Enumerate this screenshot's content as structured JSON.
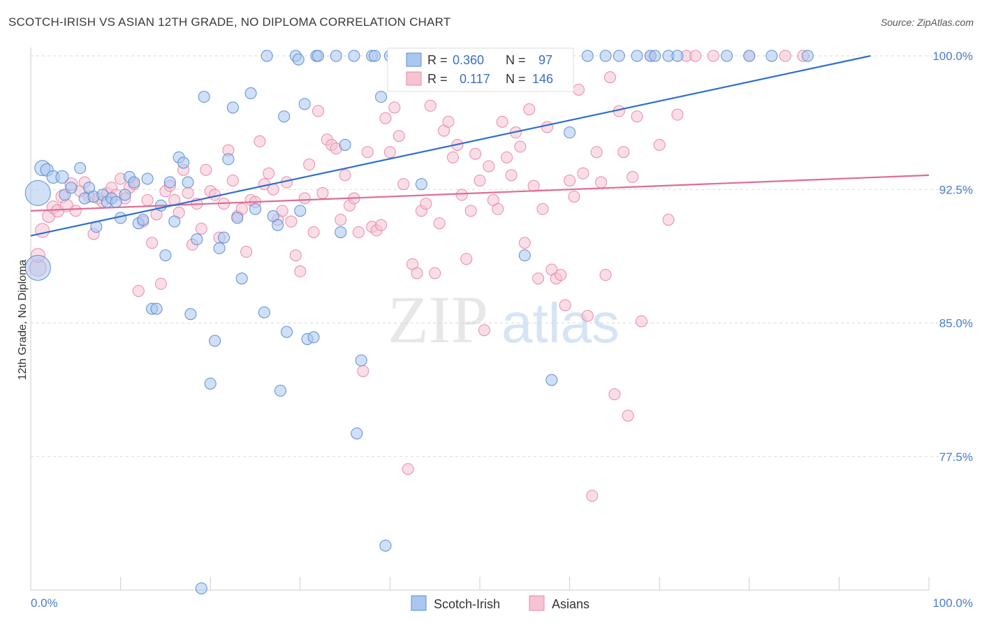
{
  "title": "SCOTCH-IRISH VS ASIAN 12TH GRADE, NO DIPLOMA CORRELATION CHART",
  "source": "Source: ZipAtlas.com",
  "watermark": {
    "zip": "ZIP",
    "atlas": "atlas"
  },
  "colors": {
    "blue_fill": "#a9c7ef",
    "blue_stroke": "#5b8fd6",
    "blue_line": "#2f6fcf",
    "pink_fill": "#f6c3d3",
    "pink_stroke": "#e98aa8",
    "pink_line": "#e06b94",
    "tick_text": "#4a7ccc",
    "grid": "#d9d9d9"
  },
  "legend": {
    "rows": [
      {
        "r_label": "R =",
        "r_value": "0.360",
        "n_label": "N =",
        "n_value": "97"
      },
      {
        "r_label": "R =",
        "r_value": "0.117",
        "n_label": "N =",
        "n_value": "146"
      }
    ]
  },
  "chart_data": {
    "type": "scatter",
    "xlabel": "",
    "ylabel": "12th Grade, No Diploma",
    "xlim": [
      0,
      100
    ],
    "ylim": [
      70.0,
      100.8
    ],
    "x_tick_labels": [
      "0.0%",
      "100.0%"
    ],
    "y_ticks": [
      77.5,
      85.0,
      92.5,
      100.0
    ],
    "y_tick_labels": [
      "77.5%",
      "85.0%",
      "92.5%",
      "100.0%"
    ],
    "grid": true,
    "legend_placement": "top-center",
    "series": [
      {
        "name": "Scotch-Irish",
        "R": 0.36,
        "N": 97,
        "trend": [
          [
            0,
            89.9
          ],
          [
            93.5,
            100.0
          ]
        ],
        "points": [
          [
            0.8,
            92.3,
            18
          ],
          [
            0.8,
            88.1,
            18
          ],
          [
            1.3,
            93.7,
            11
          ],
          [
            1.8,
            93.6,
            9
          ],
          [
            2.5,
            93.2,
            9
          ],
          [
            3.5,
            93.2,
            9
          ],
          [
            3.8,
            92.2,
            8
          ],
          [
            4.5,
            92.6,
            8
          ],
          [
            5.5,
            93.7,
            8
          ],
          [
            6,
            92.0,
            8
          ],
          [
            6.5,
            92.6,
            8
          ],
          [
            7,
            92.1,
            8
          ],
          [
            7.3,
            90.4,
            8
          ],
          [
            8,
            92.2,
            8
          ],
          [
            8.5,
            91.8,
            8
          ],
          [
            9,
            92.0,
            8
          ],
          [
            9.5,
            91.8,
            8
          ],
          [
            10,
            90.9,
            8
          ],
          [
            10.5,
            92.2,
            8
          ],
          [
            11,
            93.2,
            8
          ],
          [
            11.5,
            92.9,
            8
          ],
          [
            12,
            90.6,
            8
          ],
          [
            12.5,
            90.8,
            8
          ],
          [
            13,
            93.1,
            8
          ],
          [
            13.5,
            85.8,
            8
          ],
          [
            14,
            85.8,
            8
          ],
          [
            14.5,
            91.6,
            8
          ],
          [
            15,
            88.8,
            8
          ],
          [
            15.5,
            92.9,
            8
          ],
          [
            16,
            90.7,
            8
          ],
          [
            16.5,
            94.3,
            8
          ],
          [
            17,
            94.0,
            8
          ],
          [
            17.5,
            92.9,
            8
          ],
          [
            17.8,
            85.5,
            8
          ],
          [
            18.5,
            89.7,
            8
          ],
          [
            19,
            70.1,
            8
          ],
          [
            19.3,
            97.7,
            8
          ],
          [
            20,
            81.6,
            8
          ],
          [
            20.5,
            84.0,
            8
          ],
          [
            21,
            89.2,
            8
          ],
          [
            21.5,
            89.8,
            8
          ],
          [
            22,
            94.2,
            8
          ],
          [
            22.5,
            97.1,
            8
          ],
          [
            23,
            90.9,
            8
          ],
          [
            23.5,
            87.5,
            8
          ],
          [
            24.5,
            97.9,
            8
          ],
          [
            25,
            91.4,
            8
          ],
          [
            26,
            85.6,
            8
          ],
          [
            26.3,
            100.0,
            8
          ],
          [
            27,
            91.0,
            8
          ],
          [
            27.5,
            90.5,
            8
          ],
          [
            27.8,
            81.2,
            8
          ],
          [
            28.2,
            96.6,
            8
          ],
          [
            28.5,
            84.5,
            8
          ],
          [
            29.5,
            100.0,
            8
          ],
          [
            29.8,
            99.8,
            8
          ],
          [
            30,
            91.3,
            8
          ],
          [
            30.5,
            97.3,
            8
          ],
          [
            30.8,
            84.1,
            8
          ],
          [
            31.5,
            84.2,
            8
          ],
          [
            31.8,
            100.0,
            8
          ],
          [
            32,
            100.0,
            8
          ],
          [
            34,
            100.0,
            8
          ],
          [
            34.5,
            90.1,
            8
          ],
          [
            35,
            95.0,
            8
          ],
          [
            36,
            100.0,
            8
          ],
          [
            36.3,
            78.8,
            8
          ],
          [
            36.8,
            82.9,
            8
          ],
          [
            38,
            100.0,
            8
          ],
          [
            38.3,
            100.0,
            8
          ],
          [
            39,
            97.7,
            8
          ],
          [
            39.5,
            72.5,
            8
          ],
          [
            40,
            100.0,
            8
          ],
          [
            40.3,
            100.0,
            8
          ],
          [
            43.5,
            92.8,
            8
          ],
          [
            44,
            100.0,
            8
          ],
          [
            46,
            100.0,
            8
          ],
          [
            48,
            100.0,
            8
          ],
          [
            50,
            100.0,
            8
          ],
          [
            52,
            100.0,
            8
          ],
          [
            53.5,
            100.0,
            8
          ],
          [
            55,
            88.8,
            8
          ],
          [
            56.5,
            100.0,
            8
          ],
          [
            58,
            81.8,
            8
          ],
          [
            60,
            95.7,
            8
          ],
          [
            62,
            100.0,
            8
          ],
          [
            64,
            100.0,
            8
          ],
          [
            65.5,
            100.0,
            8
          ],
          [
            67.5,
            100.0,
            8
          ],
          [
            69,
            100.0,
            8
          ],
          [
            69.5,
            100.0,
            8
          ],
          [
            71,
            100.0,
            8
          ],
          [
            72,
            100.0,
            8
          ],
          [
            77.5,
            100.0,
            8
          ],
          [
            80,
            100.0,
            8
          ],
          [
            82.5,
            100.0,
            8
          ],
          [
            86.5,
            100.0,
            8
          ]
        ]
      },
      {
        "name": "Asians",
        "R": 0.117,
        "N": 146,
        "trend": [
          [
            0,
            91.3
          ],
          [
            100,
            93.3
          ]
        ],
        "points": [
          [
            0.8,
            88.1,
            12
          ],
          [
            0.8,
            88.8,
            10
          ],
          [
            1.3,
            90.2,
            10
          ],
          [
            2,
            91.0,
            9
          ],
          [
            2.5,
            91.5,
            9
          ],
          [
            3,
            91.3,
            9
          ],
          [
            3.5,
            92.1,
            9
          ],
          [
            4,
            91.6,
            9
          ],
          [
            4.5,
            92.8,
            9
          ],
          [
            5,
            91.3,
            8
          ],
          [
            5.5,
            92.4,
            8
          ],
          [
            6,
            92.9,
            8
          ],
          [
            6.5,
            92.1,
            8
          ],
          [
            7,
            90.0,
            8
          ],
          [
            7.5,
            92.0,
            8
          ],
          [
            8,
            91.8,
            8
          ],
          [
            8.5,
            92.3,
            8
          ],
          [
            9,
            92.6,
            8
          ],
          [
            9.5,
            92.2,
            8
          ],
          [
            10,
            93.1,
            8
          ],
          [
            10.5,
            92.0,
            8
          ],
          [
            11,
            92.6,
            8
          ],
          [
            11.5,
            92.8,
            8
          ],
          [
            12,
            86.8,
            8
          ],
          [
            12.5,
            90.7,
            8
          ],
          [
            13,
            91.9,
            8
          ],
          [
            13.5,
            89.5,
            8
          ],
          [
            14,
            91.1,
            8
          ],
          [
            14.5,
            87.2,
            8
          ],
          [
            15,
            92.4,
            8
          ],
          [
            15.5,
            92.7,
            8
          ],
          [
            16,
            91.9,
            8
          ],
          [
            16.5,
            91.2,
            8
          ],
          [
            17,
            93.6,
            8
          ],
          [
            17.5,
            92.3,
            8
          ],
          [
            18,
            89.4,
            8
          ],
          [
            18.5,
            91.7,
            8
          ],
          [
            19,
            90.3,
            8
          ],
          [
            19.5,
            93.6,
            8
          ],
          [
            20,
            92.4,
            8
          ],
          [
            20.5,
            92.2,
            8
          ],
          [
            21,
            89.8,
            8
          ],
          [
            21.5,
            91.7,
            8
          ],
          [
            22,
            94.7,
            8
          ],
          [
            22.5,
            93.0,
            8
          ],
          [
            23,
            91.0,
            8
          ],
          [
            23.5,
            91.4,
            8
          ],
          [
            24,
            89.0,
            8
          ],
          [
            24.5,
            91.9,
            8
          ],
          [
            25,
            91.8,
            8
          ],
          [
            25.5,
            95.2,
            8
          ],
          [
            26,
            92.8,
            8
          ],
          [
            26.5,
            93.4,
            8
          ],
          [
            27,
            92.5,
            8
          ],
          [
            27.5,
            90.8,
            8
          ],
          [
            28,
            91.3,
            8
          ],
          [
            28.5,
            92.9,
            8
          ],
          [
            29,
            90.7,
            8
          ],
          [
            29.5,
            88.8,
            8
          ],
          [
            30,
            87.9,
            8
          ],
          [
            30.5,
            92.0,
            8
          ],
          [
            31,
            93.9,
            8
          ],
          [
            31.5,
            90.1,
            8
          ],
          [
            32,
            96.9,
            8
          ],
          [
            32.5,
            92.3,
            8
          ],
          [
            33,
            95.3,
            8
          ],
          [
            33.5,
            95.0,
            8
          ],
          [
            34,
            94.8,
            8
          ],
          [
            34.5,
            90.8,
            8
          ],
          [
            35,
            93.3,
            8
          ],
          [
            35.5,
            91.6,
            8
          ],
          [
            36,
            92.0,
            8
          ],
          [
            36.5,
            90.1,
            8
          ],
          [
            37,
            82.3,
            8
          ],
          [
            37.5,
            94.6,
            8
          ],
          [
            38,
            90.4,
            8
          ],
          [
            38.5,
            90.2,
            8
          ],
          [
            39,
            90.5,
            8
          ],
          [
            39.5,
            96.5,
            8
          ],
          [
            40,
            94.6,
            8
          ],
          [
            40.5,
            97.1,
            8
          ],
          [
            41,
            95.5,
            8
          ],
          [
            41.5,
            92.8,
            8
          ],
          [
            42,
            76.8,
            8
          ],
          [
            42.5,
            88.3,
            8
          ],
          [
            43,
            87.8,
            8
          ],
          [
            43.5,
            91.3,
            8
          ],
          [
            44,
            91.7,
            8
          ],
          [
            44.5,
            97.2,
            8
          ],
          [
            45,
            87.8,
            8
          ],
          [
            45.5,
            90.6,
            8
          ],
          [
            46,
            95.8,
            8
          ],
          [
            46.5,
            96.3,
            8
          ],
          [
            47,
            94.3,
            8
          ],
          [
            47.5,
            95.0,
            8
          ],
          [
            48,
            92.2,
            8
          ],
          [
            48.5,
            88.6,
            8
          ],
          [
            49,
            91.3,
            8
          ],
          [
            49.5,
            94.5,
            8
          ],
          [
            50,
            93.0,
            8
          ],
          [
            50.5,
            84.6,
            8
          ],
          [
            51,
            93.8,
            8
          ],
          [
            51.5,
            91.9,
            8
          ],
          [
            52,
            91.4,
            8
          ],
          [
            52.5,
            96.3,
            8
          ],
          [
            53,
            94.3,
            8
          ],
          [
            53.5,
            93.3,
            8
          ],
          [
            54,
            95.7,
            8
          ],
          [
            54.5,
            94.9,
            8
          ],
          [
            55,
            89.5,
            8
          ],
          [
            55.5,
            97.0,
            8
          ],
          [
            56,
            92.7,
            8
          ],
          [
            56.5,
            87.5,
            8
          ],
          [
            57,
            91.4,
            8
          ],
          [
            57.5,
            96.0,
            8
          ],
          [
            58,
            88.0,
            8
          ],
          [
            58.5,
            87.5,
            8
          ],
          [
            59,
            87.7,
            8
          ],
          [
            59.5,
            86.0,
            8
          ],
          [
            60,
            93.0,
            8
          ],
          [
            60.5,
            92.1,
            8
          ],
          [
            61,
            98.1,
            8
          ],
          [
            61.5,
            93.4,
            8
          ],
          [
            62,
            85.4,
            8
          ],
          [
            62.5,
            75.3,
            8
          ],
          [
            63,
            94.6,
            8
          ],
          [
            63.5,
            92.9,
            8
          ],
          [
            64,
            87.7,
            8
          ],
          [
            64.5,
            98.8,
            8
          ],
          [
            65,
            81.0,
            8
          ],
          [
            65.5,
            96.9,
            8
          ],
          [
            66,
            94.6,
            8
          ],
          [
            66.5,
            79.8,
            8
          ],
          [
            67,
            93.2,
            8
          ],
          [
            67.5,
            96.6,
            8
          ],
          [
            68,
            85.1,
            8
          ],
          [
            69,
            100.0,
            8
          ],
          [
            70,
            95.0,
            8
          ],
          [
            71,
            90.8,
            8
          ],
          [
            72,
            96.7,
            8
          ],
          [
            73,
            100.0,
            8
          ],
          [
            74,
            100.0,
            8
          ],
          [
            76,
            100.0,
            8
          ],
          [
            80,
            100.0,
            8
          ],
          [
            84,
            100.0,
            8
          ],
          [
            86,
            100.0,
            8
          ]
        ]
      }
    ]
  }
}
